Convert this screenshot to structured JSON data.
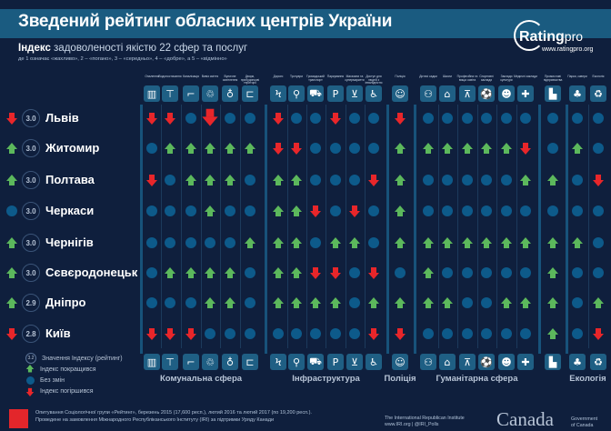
{
  "header": {
    "title": "Зведений рейтинг обласних центрів України",
    "subtitle_bold": "Індекс",
    "subtitle_rest": " задоволеності якістю 22 сфер та послуг",
    "scale_note": "де 1 означає «жахливо», 2 – «погано», 3 – «середньо», 4 – «добре», а 5 – «відмінно»",
    "logo_main": "Rating",
    "logo_suffix": "pro",
    "website": "www.ratingpro.org"
  },
  "columns": [
    {
      "label": "Опалення",
      "icon": "radiator-icon",
      "glyph": "▥"
    },
    {
      "label": "Водопостачання",
      "icon": "water-tap-icon",
      "glyph": "⊤"
    },
    {
      "label": "Каналізація",
      "icon": "sewer-pipe-icon",
      "glyph": "⌐"
    },
    {
      "label": "Вивіз сміття",
      "icon": "trash-icon",
      "glyph": "♲"
    },
    {
      "label": "Вуличне освітлення",
      "icon": "street-lamp-icon",
      "glyph": "♁"
    },
    {
      "label": "Двори, прибудинкові території",
      "icon": "bench-icon",
      "glyph": "⊏"
    },
    {
      "label": "Дороги",
      "icon": "road-icon",
      "glyph": "Ϟ"
    },
    {
      "label": "Тротуари",
      "icon": "pedestrian-icon",
      "glyph": "⚲"
    },
    {
      "label": "Громадський транспорт",
      "icon": "car-icon",
      "glyph": "⛟"
    },
    {
      "label": "Паркування",
      "icon": "parking-icon",
      "glyph": "P"
    },
    {
      "label": "Магазини та супермаркети",
      "icon": "cart-icon",
      "glyph": "⊻"
    },
    {
      "label": "Доступ для людей з інвалідністю",
      "icon": "wheelchair-icon",
      "glyph": "♿"
    },
    {
      "label": "Поліція",
      "icon": "police-icon",
      "glyph": "☺"
    },
    {
      "label": "Дитячі садки",
      "icon": "kids-icon",
      "glyph": "⚇"
    },
    {
      "label": "Школи",
      "icon": "school-icon",
      "glyph": "⌂"
    },
    {
      "label": "Професійна та вища освіта",
      "icon": "graduation-cap-icon",
      "glyph": "⊼"
    },
    {
      "label": "Спортивні заклади",
      "icon": "sport-icon",
      "glyph": "⚽"
    },
    {
      "label": "Заклади культури",
      "icon": "theatre-masks-icon",
      "glyph": "☻"
    },
    {
      "label": "Медичні заклади",
      "icon": "medical-house-icon",
      "glyph": "✚"
    },
    {
      "label": "Промислові підприємства",
      "icon": "factory-icon",
      "glyph": "▙"
    },
    {
      "label": "Парки, сквери",
      "icon": "trees-icon",
      "glyph": "♣"
    },
    {
      "label": "Екологія",
      "icon": "recycle-icon",
      "glyph": "♻"
    }
  ],
  "groups": [
    {
      "label": "Комунальна сфера",
      "cols": [
        0,
        5
      ]
    },
    {
      "label": "Інфраструктура",
      "cols": [
        6,
        11
      ]
    },
    {
      "label": "Поліція",
      "cols": [
        12,
        12
      ]
    },
    {
      "label": "Гуманітарна сфера",
      "cols": [
        13,
        18
      ]
    },
    {
      "label": "",
      "cols": [
        19,
        19
      ]
    },
    {
      "label": "Екологія",
      "cols": [
        20,
        21
      ]
    }
  ],
  "cities": [
    {
      "name": "Львів",
      "score": "3.0",
      "trend": "down",
      "cells": "ddnDnndnndnndnnnnnnnnn"
    },
    {
      "name": "Житомир",
      "score": "3.0",
      "trend": "up",
      "cells": "nuuuuuddnnnnuuuuuudnun"
    },
    {
      "name": "Полтава",
      "score": "3.0",
      "trend": "up",
      "cells": "dnuuunuunnndunnnnnuund"
    },
    {
      "name": "Черкаси",
      "score": "3.0",
      "trend": "none",
      "cells": "nnnunnuudndnunnnnnnnnn"
    },
    {
      "name": "Чернігів",
      "score": "3.0",
      "trend": "up",
      "cells": "nnnnnuuunuunuuuuuuuuun"
    },
    {
      "name": "Сєвєродонецьк",
      "score": "3.0",
      "trend": "up",
      "cells": "nuuuunuuddndnunnnnnunn"
    },
    {
      "name": "Дніпро",
      "score": "2.9",
      "trend": "up",
      "cells": "nnnuunuuuunuuuunnuuunu"
    },
    {
      "name": "Київ",
      "score": "2.8",
      "trend": "down",
      "cells": "dddnnnnnnnnddnnnnnnund"
    }
  ],
  "legend": {
    "score_example": "3.2",
    "score_label": "Значення Індексу (рейтинг)",
    "up": "Індекс покращився",
    "none": "Без змін",
    "down": "Індекс погіршився"
  },
  "colors": {
    "up": "#5cb85c",
    "down": "#e8262a",
    "none": "#0d5a8a",
    "background": "#0f1f3d",
    "titlebar": "#1a5b80"
  },
  "footer": {
    "line1": "Опитування Соціологічної групи «Рейтинг», березень 2015 (17,600 респ.), лютий 2016 та лютий 2017 (по 19,200 респ.).",
    "line2": "Проведене на замовлення Міжнародного Республіканського Інституту (IRI) за підтримки Уряду Канади",
    "rating_logo": "rating",
    "iri_logo": "IRI",
    "iri_line1": "The International Republican Institute",
    "iri_line2": "www.IRI.org | @IRI_Polls",
    "canada": "Canada",
    "gov_line1": "Government",
    "gov_line2": "of Canada"
  }
}
